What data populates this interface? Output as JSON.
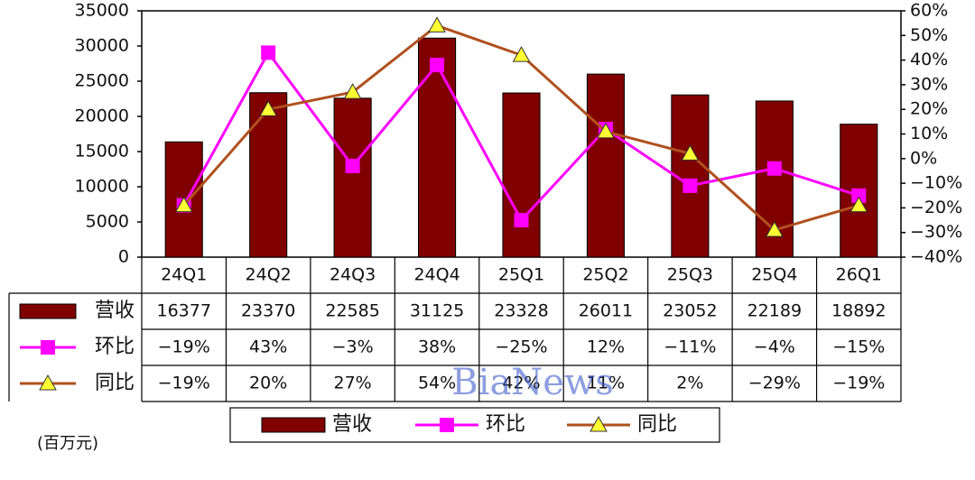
{
  "chart_data": {
    "type": "combo",
    "unit_label": "(百万元)",
    "watermark": "BiaNews",
    "categories": [
      "24Q1",
      "24Q2",
      "24Q3",
      "24Q4",
      "25Q1",
      "25Q2",
      "25Q3",
      "25Q4",
      "26Q1"
    ],
    "series": [
      {
        "name": "营收",
        "type": "bar",
        "color": "#800000",
        "values": [
          16377,
          23370,
          22585,
          31125,
          23328,
          26011,
          23052,
          22189,
          18892
        ]
      },
      {
        "name": "环比",
        "type": "line",
        "axis": "y2",
        "color": "#ff00ff",
        "marker": "square",
        "marker_color": "#ff00ff",
        "values": [
          -19,
          43,
          -3,
          38,
          -25,
          12,
          -11,
          -4,
          -15
        ],
        "value_labels": [
          "−19%",
          "43%",
          "−3%",
          "38%",
          "−25%",
          "12%",
          "−11%",
          "−4%",
          "−15%"
        ]
      },
      {
        "name": "同比",
        "type": "line",
        "axis": "y2",
        "color": "#b0501e",
        "marker": "triangle",
        "marker_color": "#ffff33",
        "values": [
          -19,
          20,
          27,
          54,
          42,
          11,
          2,
          -29,
          -19
        ],
        "value_labels": [
          "−19%",
          "20%",
          "27%",
          "54%",
          "42%",
          "11%",
          "2%",
          "−29%",
          "−19%"
        ]
      }
    ],
    "ylim": [
      0,
      35000
    ],
    "yticks": [
      0,
      5000,
      10000,
      15000,
      20000,
      25000,
      30000,
      35000
    ],
    "y2lim": [
      -40,
      60
    ],
    "y2ticks": [
      {
        "value": -40,
        "label": "−40%"
      },
      {
        "value": -30,
        "label": "−30%"
      },
      {
        "value": -20,
        "label": "−20%"
      },
      {
        "value": -10,
        "label": "−10%"
      },
      {
        "value": 0,
        "label": "0%"
      },
      {
        "value": 10,
        "label": "10%"
      },
      {
        "value": 20,
        "label": "20%"
      },
      {
        "value": 30,
        "label": "30%"
      },
      {
        "value": 40,
        "label": "40%"
      },
      {
        "value": 50,
        "label": "50%"
      },
      {
        "value": 60,
        "label": "60%"
      }
    ]
  }
}
